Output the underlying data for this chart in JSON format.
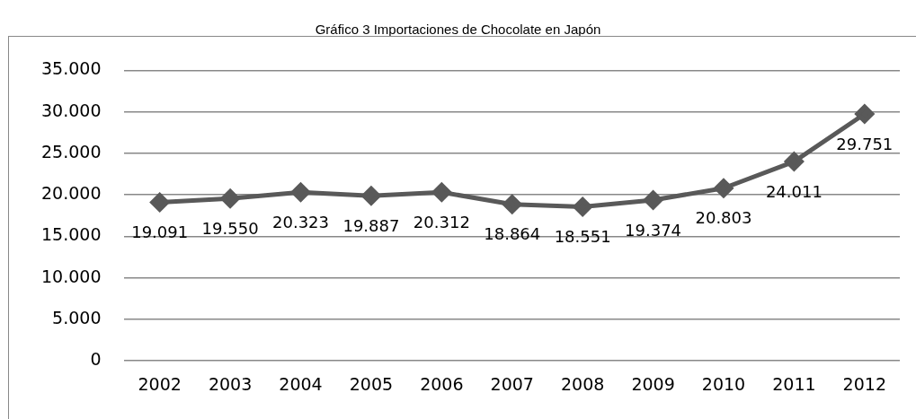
{
  "chart_data": {
    "type": "line",
    "title": "Gráfico 3 Importaciones de Chocolate en Japón",
    "categories": [
      "2002",
      "2003",
      "2004",
      "2005",
      "2006",
      "2007",
      "2008",
      "2009",
      "2010",
      "2011",
      "2012"
    ],
    "series": [
      {
        "color": "#595959",
        "values": [
          19091,
          19550,
          20323,
          19887,
          20312,
          18864,
          18551,
          19374,
          20803,
          24011,
          29751
        ],
        "value_labels": [
          "19.091",
          "19.550",
          "20.323",
          "19.887",
          "20.312",
          "18.864",
          "18.551",
          "19.374",
          "20.803",
          "24.011",
          "29.751"
        ]
      }
    ],
    "ylim": [
      0,
      35000
    ],
    "yticks": [
      {
        "value": 0,
        "label": "0"
      },
      {
        "value": 5000,
        "label": "5.000"
      },
      {
        "value": 10000,
        "label": "10.000"
      },
      {
        "value": 15000,
        "label": "15.000"
      },
      {
        "value": 20000,
        "label": "20.000"
      },
      {
        "value": 25000,
        "label": "25.000"
      },
      {
        "value": 30000,
        "label": "30.000"
      },
      {
        "value": 35000,
        "label": "35.000"
      }
    ],
    "grid": "y",
    "legend": false,
    "marker": "diamond",
    "line_style": "solid"
  }
}
